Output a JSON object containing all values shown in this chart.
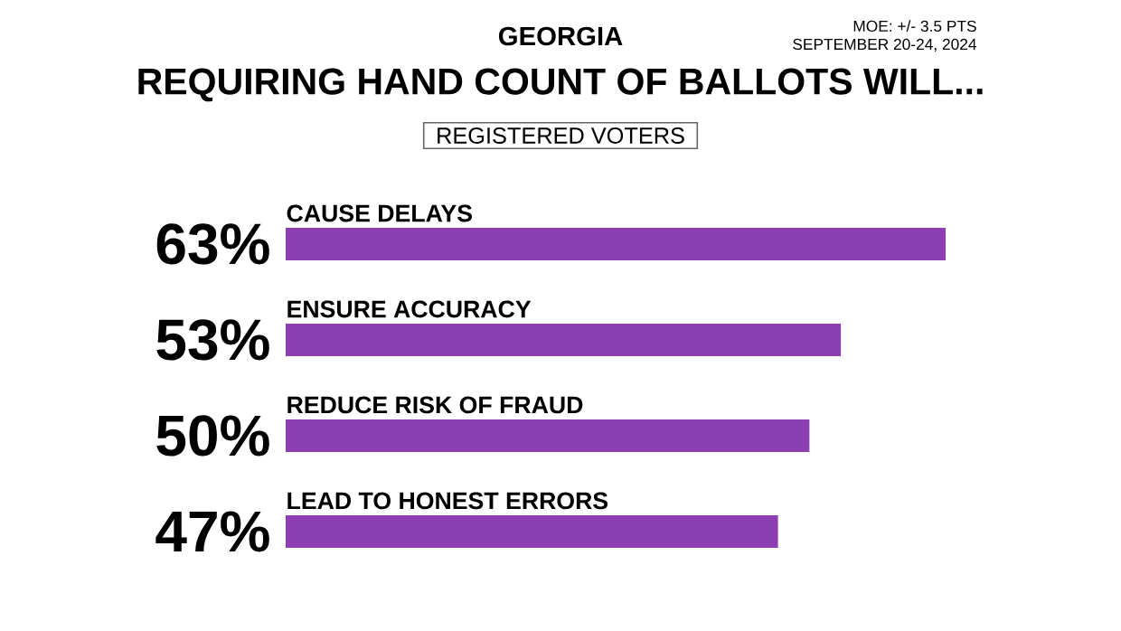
{
  "chart_data": {
    "type": "bar",
    "orientation": "horizontal",
    "title": "GEORGIA",
    "subtitle": "REQUIRING HAND COUNT OF BALLOTS WILL...",
    "annotations": [
      "REGISTERED VOTERS",
      "MOE: +/- 3.5 PTS",
      "SEPTEMBER 20-24, 2024"
    ],
    "categories": [
      "CAUSE DELAYS",
      "ENSURE ACCURACY",
      "REDUCE RISK OF FRAUD",
      "LEAD TO HONEST ERRORS"
    ],
    "values": [
      63,
      53,
      50,
      47
    ],
    "value_labels": [
      "63%",
      "53%",
      "50%",
      "47%"
    ],
    "color": "#8b3fb3"
  }
}
